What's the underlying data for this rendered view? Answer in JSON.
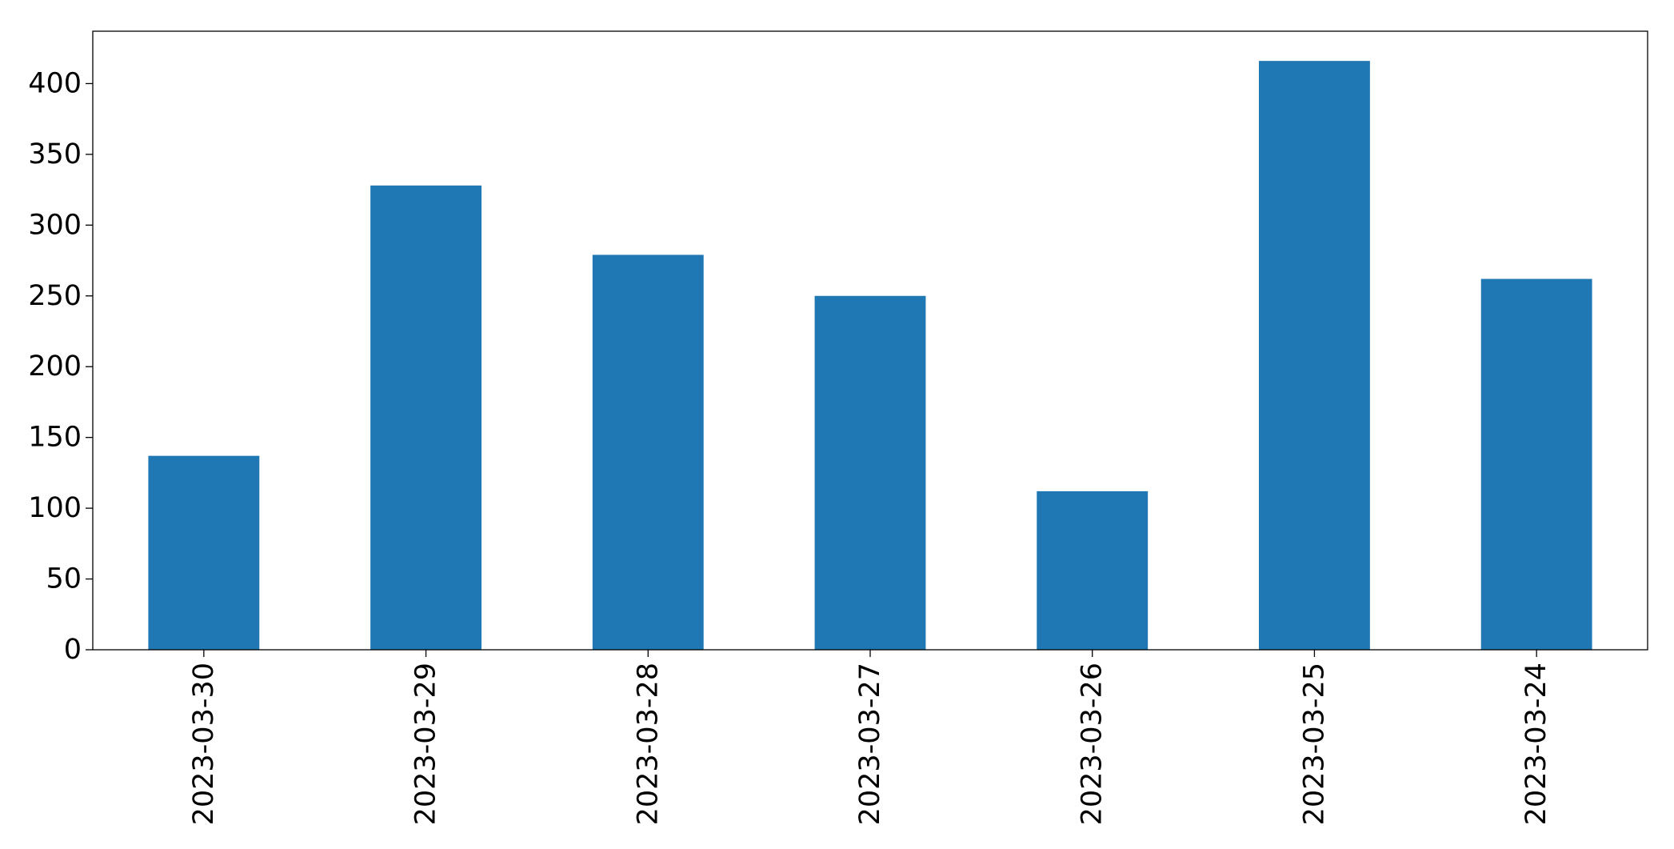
{
  "chart_data": {
    "type": "bar",
    "title": "",
    "xlabel": "",
    "ylabel": "",
    "categories": [
      "2023-03-30",
      "2023-03-29",
      "2023-03-28",
      "2023-03-27",
      "2023-03-26",
      "2023-03-25",
      "2023-03-24"
    ],
    "values": [
      137,
      328,
      279,
      250,
      112,
      416,
      262
    ],
    "ylim": [
      0,
      437
    ],
    "yticks": [
      0,
      50,
      100,
      150,
      200,
      250,
      300,
      350,
      400
    ],
    "ytick_labels": [
      "0",
      "50",
      "100",
      "150",
      "200",
      "250",
      "300",
      "350",
      "400"
    ],
    "x_tick_rotation": "vertical",
    "grid": false,
    "legend": "none",
    "colors": {
      "bar": "#1f77b4",
      "axis": "#000000",
      "background": "#ffffff"
    }
  }
}
